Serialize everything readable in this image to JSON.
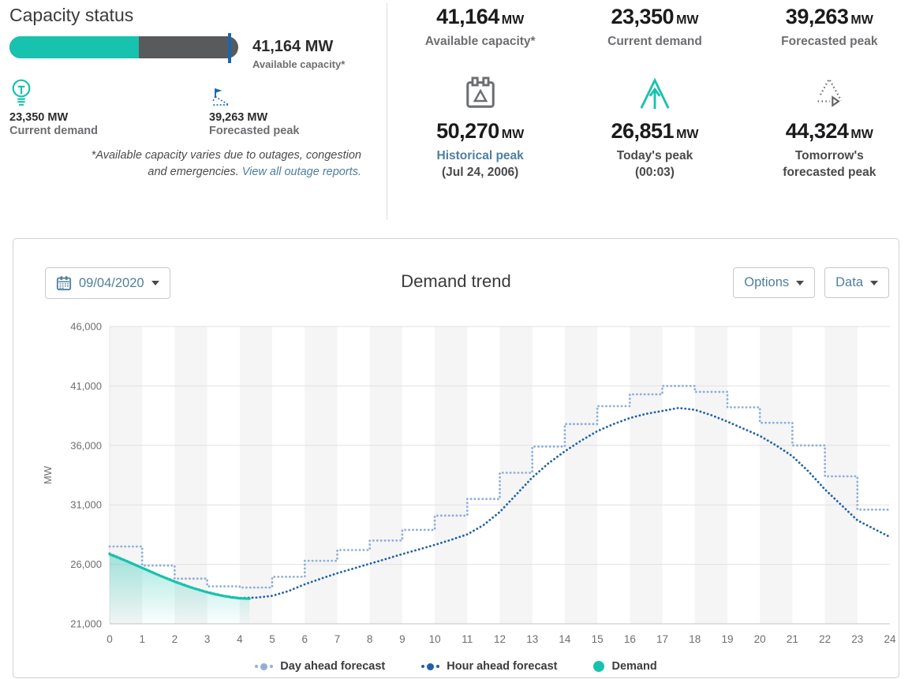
{
  "capacity_status": {
    "title": "Capacity status",
    "bar": {
      "fill_percent": 56.7,
      "marker_percent": 95.4,
      "fill_color": "#17c2ae",
      "track_color": "#595a5c",
      "marker_color": "#1766b5"
    },
    "available": {
      "value": "41,164 MW",
      "label": "Available capacity*"
    },
    "current": {
      "value": "23,350 MW",
      "label": "Current demand"
    },
    "forecast": {
      "value": "39,263 MW",
      "label": "Forecasted peak"
    },
    "footnote_line1": "*Available capacity varies due to outages, congestion",
    "footnote_line2": "and emergencies.",
    "footnote_link": "View all outage reports."
  },
  "stats": [
    {
      "value": "41,164",
      "unit": "MW",
      "label": "Available capacity*",
      "sublabel": ""
    },
    {
      "value": "23,350",
      "unit": "MW",
      "label": "Current demand",
      "sublabel": ""
    },
    {
      "value": "39,263",
      "unit": "MW",
      "label": "Forecasted peak",
      "sublabel": ""
    },
    {
      "value": "50,270",
      "unit": "MW",
      "label": "Historical peak",
      "sublabel": "(Jul 24, 2006)",
      "icon": "calendar-icon"
    },
    {
      "value": "26,851",
      "unit": "MW",
      "label": "Today's peak",
      "sublabel": "(00:03)",
      "icon": "todays-peak-icon"
    },
    {
      "value": "44,324",
      "unit": "MW",
      "label": "Tomorrow's",
      "sublabel": "forecasted peak",
      "icon": "tomorrows-forecast-icon"
    }
  ],
  "chart": {
    "date_value": "09/04/2020",
    "title": "Demand trend",
    "options_label": "Options",
    "data_label": "Data"
  },
  "chart_data": {
    "type": "line",
    "title": "Demand trend",
    "xlabel": "",
    "ylabel": "MW",
    "x_min": 0,
    "x_max": 24,
    "y_min": 21000,
    "y_max": 46000,
    "y_step": 5000,
    "x_tick_step": 1,
    "grid": true,
    "band_color": "#f5f5f5",
    "legend_position": "bottom",
    "series": [
      {
        "name": "Day ahead forecast",
        "style": "dotted-step",
        "color": "#8fafdd",
        "step_values_per_hour": [
          27500,
          25900,
          24800,
          24150,
          24050,
          24950,
          26300,
          27200,
          28000,
          28900,
          30100,
          31500,
          33700,
          35900,
          37800,
          39300,
          40300,
          41000,
          40500,
          39200,
          37900,
          36000,
          33400,
          30600
        ]
      },
      {
        "name": "Hour ahead forecast",
        "style": "dotted",
        "color": "#1f61ab",
        "points": [
          [
            0,
            26900
          ],
          [
            0.5,
            26320
          ],
          [
            1,
            25720
          ],
          [
            1.5,
            25120
          ],
          [
            2,
            24580
          ],
          [
            2.5,
            24080
          ],
          [
            3,
            23680
          ],
          [
            3.5,
            23360
          ],
          [
            4,
            23170
          ],
          [
            4.5,
            23200
          ],
          [
            5,
            23350
          ],
          [
            5.5,
            23750
          ],
          [
            6,
            24320
          ],
          [
            6.5,
            24800
          ],
          [
            7,
            25250
          ],
          [
            7.5,
            25650
          ],
          [
            8,
            26050
          ],
          [
            8.5,
            26450
          ],
          [
            9,
            26860
          ],
          [
            9.5,
            27250
          ],
          [
            10,
            27640
          ],
          [
            10.5,
            28060
          ],
          [
            11,
            28520
          ],
          [
            11.5,
            29300
          ],
          [
            12,
            30400
          ],
          [
            12.5,
            31850
          ],
          [
            13,
            33300
          ],
          [
            13.5,
            34500
          ],
          [
            14,
            35500
          ],
          [
            14.5,
            36400
          ],
          [
            15,
            37200
          ],
          [
            15.5,
            37800
          ],
          [
            16,
            38300
          ],
          [
            16.5,
            38650
          ],
          [
            17,
            38900
          ],
          [
            17.5,
            39150
          ],
          [
            18,
            39000
          ],
          [
            18.5,
            38550
          ],
          [
            19,
            38000
          ],
          [
            19.5,
            37400
          ],
          [
            20,
            36800
          ],
          [
            20.5,
            36000
          ],
          [
            21,
            35100
          ],
          [
            21.5,
            33800
          ],
          [
            22,
            32300
          ],
          [
            22.5,
            31000
          ],
          [
            23,
            29700
          ],
          [
            23.5,
            29000
          ],
          [
            24,
            28300
          ]
        ]
      },
      {
        "name": "Demand",
        "style": "solid-area",
        "color": "#17c2ae",
        "points": [
          [
            0,
            26850
          ],
          [
            0.25,
            26580
          ],
          [
            0.5,
            26300
          ],
          [
            0.75,
            26000
          ],
          [
            1,
            25700
          ],
          [
            1.25,
            25400
          ],
          [
            1.5,
            25100
          ],
          [
            1.75,
            24820
          ],
          [
            2,
            24550
          ],
          [
            2.25,
            24300
          ],
          [
            2.5,
            24060
          ],
          [
            2.75,
            23850
          ],
          [
            3,
            23650
          ],
          [
            3.25,
            23480
          ],
          [
            3.5,
            23340
          ],
          [
            3.75,
            23230
          ],
          [
            4,
            23150
          ],
          [
            4.3,
            23110
          ]
        ]
      }
    ]
  }
}
